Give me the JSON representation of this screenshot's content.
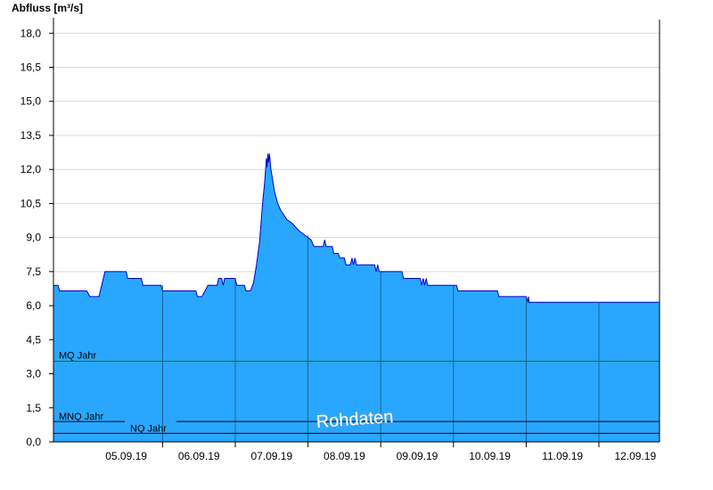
{
  "chart_data": {
    "type": "area",
    "ylabel": "Abfluss [m³/s]",
    "ylim": [
      0,
      18.6
    ],
    "y_ticks": [
      "0,0",
      "1,5",
      "3,0",
      "4,5",
      "6,0",
      "7,5",
      "9,0",
      "10,5",
      "12,0",
      "13,5",
      "15,0",
      "16,5",
      "18,0"
    ],
    "x_start": "04.09.19 12:00",
    "x_end": "12.09.19 20:00",
    "x_ticks": [
      "05.09.19",
      "06.09.19",
      "07.09.19",
      "08.09.19",
      "09.09.19",
      "10.09.19",
      "11.09.19",
      "12.09.19"
    ],
    "grid": true,
    "series": [
      {
        "values": [
          [
            "04.09.19 12:00",
            6.9
          ],
          [
            "04.09.19 13:30",
            6.9
          ],
          [
            "04.09.19 14:00",
            6.65
          ],
          [
            "04.09.19 23:00",
            6.65
          ],
          [
            "05.09.19 00:00",
            6.4
          ],
          [
            "05.09.19 03:00",
            6.4
          ],
          [
            "05.09.19 05:00",
            7.5
          ],
          [
            "05.09.19 12:00",
            7.5
          ],
          [
            "05.09.19 12:30",
            7.2
          ],
          [
            "05.09.19 17:00",
            7.2
          ],
          [
            "05.09.19 17:30",
            6.9
          ],
          [
            "05.09.19 23:30",
            6.9
          ],
          [
            "06.09.19 00:00",
            6.65
          ],
          [
            "06.09.19 11:00",
            6.65
          ],
          [
            "06.09.19 11:30",
            6.4
          ],
          [
            "06.09.19 13:00",
            6.4
          ],
          [
            "06.09.19 14:00",
            6.65
          ],
          [
            "06.09.19 15:00",
            6.9
          ],
          [
            "06.09.19 18:00",
            6.9
          ],
          [
            "06.09.19 18:30",
            7.2
          ],
          [
            "06.09.19 19:30",
            7.2
          ],
          [
            "06.09.19 20:00",
            6.9
          ],
          [
            "06.09.19 20:30",
            7.2
          ],
          [
            "06.09.19 24:00",
            7.2
          ],
          [
            "07.09.19 00:30",
            6.9
          ],
          [
            "07.09.19 03:00",
            6.9
          ],
          [
            "07.09.19 03:30",
            6.65
          ],
          [
            "07.09.19 05:00",
            6.65
          ],
          [
            "07.09.19 06:00",
            7.0
          ],
          [
            "07.09.19 07:00",
            7.8
          ],
          [
            "07.09.19 08:00",
            8.8
          ],
          [
            "07.09.19 09:00",
            10.5
          ],
          [
            "07.09.19 09:45",
            11.5
          ],
          [
            "07.09.19 10:15",
            12.5
          ],
          [
            "07.09.19 10:30",
            12.1
          ],
          [
            "07.09.19 10:45",
            12.7
          ],
          [
            "07.09.19 11:00",
            12.3
          ],
          [
            "07.09.19 11:15",
            12.7
          ],
          [
            "07.09.19 11:45",
            12.0
          ],
          [
            "07.09.19 13:00",
            11.0
          ],
          [
            "07.09.19 14:00",
            10.5
          ],
          [
            "07.09.19 15:00",
            10.2
          ],
          [
            "07.09.19 16:00",
            10.0
          ],
          [
            "07.09.19 17:00",
            9.8
          ],
          [
            "07.09.19 19:00",
            9.6
          ],
          [
            "07.09.19 21:00",
            9.3
          ],
          [
            "07.09.19 23:00",
            9.1
          ],
          [
            "08.09.19 01:00",
            8.9
          ],
          [
            "08.09.19 02:00",
            8.6
          ],
          [
            "08.09.19 05:00",
            8.6
          ],
          [
            "08.09.19 05:30",
            8.9
          ],
          [
            "08.09.19 06:00",
            8.6
          ],
          [
            "08.09.19 08:00",
            8.6
          ],
          [
            "08.09.19 08:30",
            8.3
          ],
          [
            "08.09.19 10:00",
            8.3
          ],
          [
            "08.09.19 10:30",
            8.1
          ],
          [
            "08.09.19 12:00",
            8.1
          ],
          [
            "08.09.19 12:30",
            7.8
          ],
          [
            "08.09.19 14:00",
            7.8
          ],
          [
            "08.09.19 14:30",
            8.1
          ],
          [
            "08.09.19 15:00",
            7.8
          ],
          [
            "08.09.19 15:30",
            8.1
          ],
          [
            "08.09.19 16:00",
            7.8
          ],
          [
            "08.09.19 22:00",
            7.8
          ],
          [
            "08.09.19 22:30",
            7.5
          ],
          [
            "08.09.19 23:00",
            7.8
          ],
          [
            "08.09.19 23:30",
            7.5
          ],
          [
            "09.09.19 07:00",
            7.5
          ],
          [
            "09.09.19 07:30",
            7.2
          ],
          [
            "09.09.19 13:00",
            7.2
          ],
          [
            "09.09.19 13:30",
            6.9
          ],
          [
            "09.09.19 14:00",
            7.2
          ],
          [
            "09.09.19 14:30",
            6.9
          ],
          [
            "09.09.19 15:00",
            7.2
          ],
          [
            "09.09.19 15:30",
            6.9
          ],
          [
            "10.09.19 01:00",
            6.9
          ],
          [
            "10.09.19 01:30",
            6.65
          ],
          [
            "10.09.19 14:30",
            6.65
          ],
          [
            "10.09.19 15:00",
            6.4
          ],
          [
            "10.09.19 24:00",
            6.4
          ],
          [
            "11.09.19 00:30",
            6.15
          ],
          [
            "11.09.19 00:45",
            6.4
          ],
          [
            "11.09.19 01:00",
            6.15
          ],
          [
            "12.09.19 20:00",
            6.15
          ]
        ]
      }
    ],
    "reference_lines": [
      {
        "label": "MQ Jahr",
        "value": 3.55,
        "color": "#008000"
      },
      {
        "label": "MNQ Jahr",
        "value": 0.9,
        "color": "#000000"
      },
      {
        "label": "NQ Jahr",
        "value": 0.38,
        "color": "#000000"
      }
    ],
    "colors": {
      "fill": "#29a7ff",
      "line": "#0000cc",
      "grid": "#d8d8d8"
    },
    "annotation": "Rohdaten"
  }
}
